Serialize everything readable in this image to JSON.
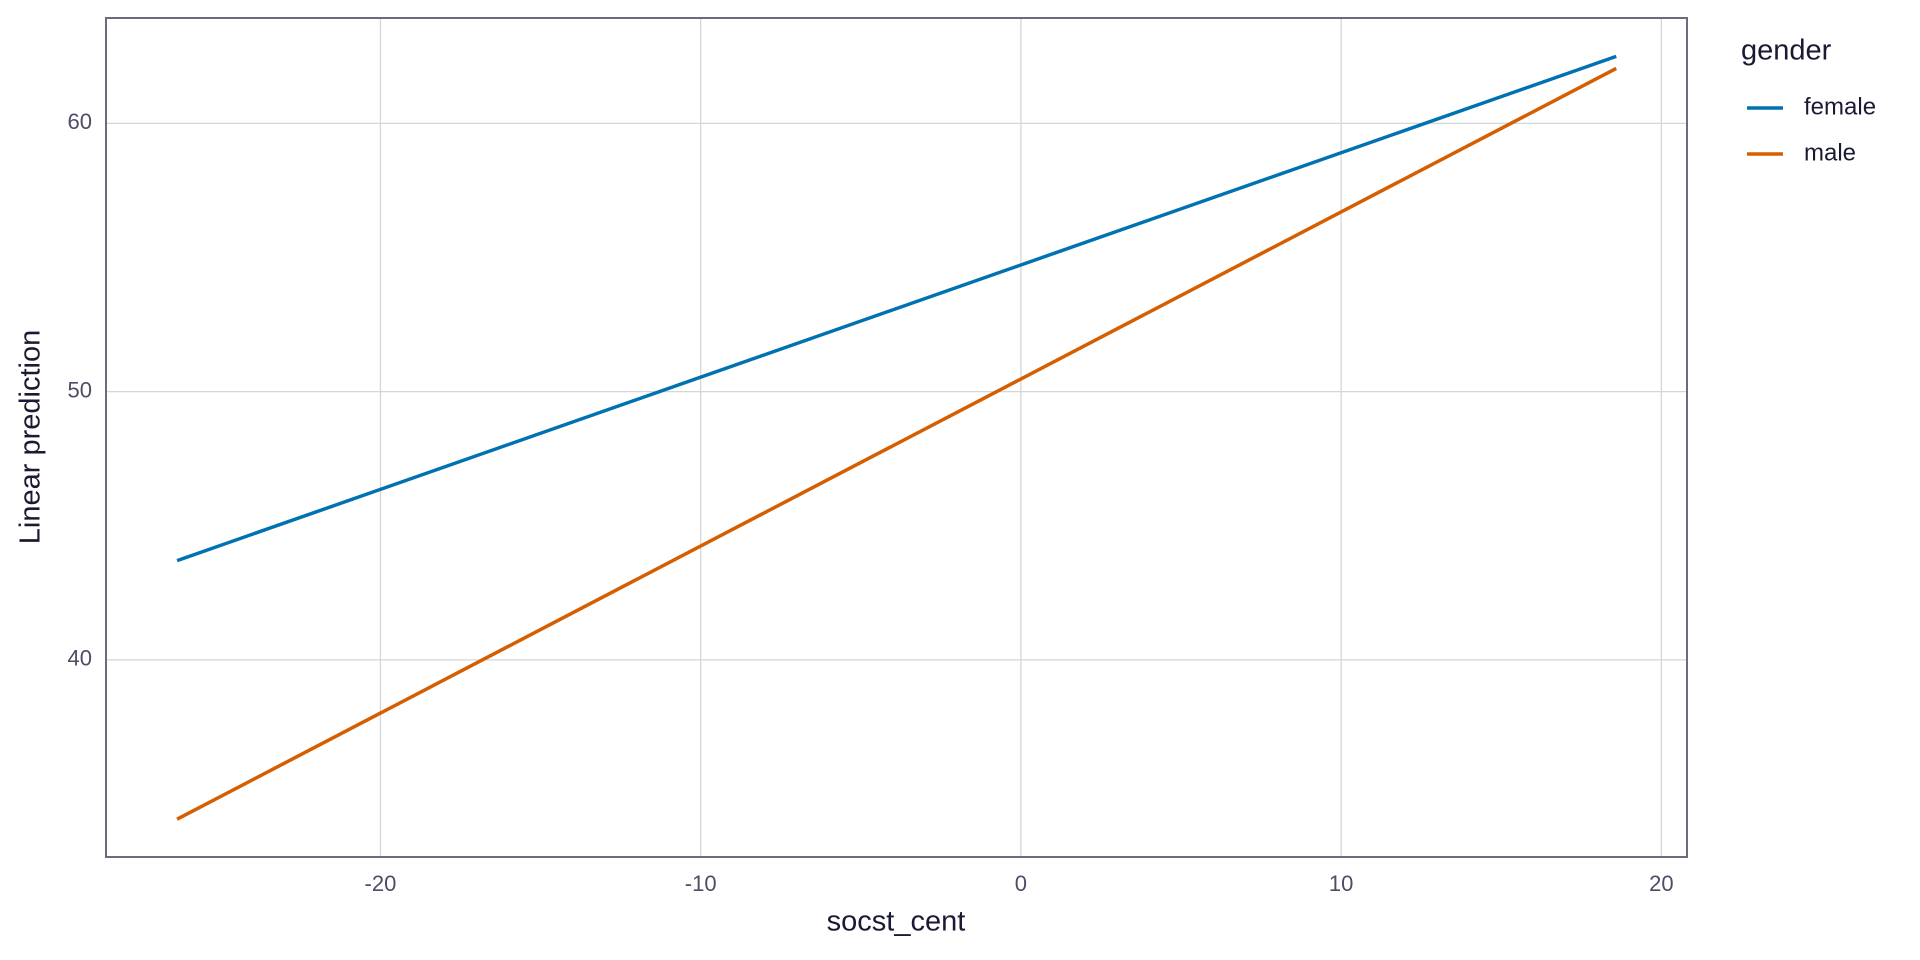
{
  "chart_data": {
    "type": "line",
    "x_label": "socst_cent",
    "y_label": "Linear prediction",
    "legend_title": "gender",
    "x": [
      -26.35,
      18.59
    ],
    "series": [
      {
        "name": "female",
        "color": "#0072B2",
        "values": [
          43.7,
          62.5
        ]
      },
      {
        "name": "male",
        "color": "#D55E00",
        "values": [
          34.06,
          62.05
        ]
      }
    ],
    "xlim": [
      -28.57,
      20.8
    ],
    "xticks": [
      -20,
      -10,
      0,
      10,
      20
    ],
    "ylim": [
      32.65,
      63.93
    ],
    "yticks": [
      40,
      50,
      60
    ],
    "grid": true,
    "legend": "right"
  }
}
